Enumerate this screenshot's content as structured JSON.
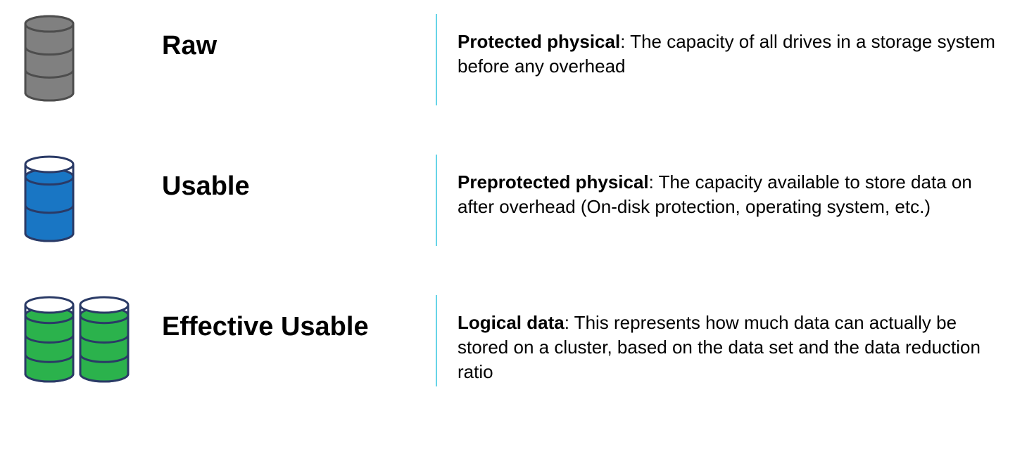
{
  "background_color": "#ffffff",
  "divider_color": "#67d4e8",
  "text_color": "#000000",
  "font_family": "Arial, Helvetica, sans-serif",
  "label_fontsize": 38,
  "label_fontweight": 700,
  "desc_fontsize": 26,
  "rows": [
    {
      "id": "raw",
      "label": "Raw",
      "desc_bold": "Protected physical",
      "desc_rest": ": The capacity of all drives in a storage system before any overhead",
      "icon": {
        "type": "single-cylinder",
        "fill_color": "#808080",
        "stroke_color": "#4d4d4d",
        "fill_level": 1.0,
        "bands": 3,
        "show_empty_top": false
      }
    },
    {
      "id": "usable",
      "label": "Usable",
      "desc_bold": "Preprotected physical",
      "desc_rest": ": The capacity available to store data on after overhead (On-disk protection, operating system, etc.)",
      "icon": {
        "type": "single-cylinder",
        "fill_color": "#1976c4",
        "stroke_color": "#2a3a66",
        "fill_level": 0.82,
        "bands": 2,
        "show_empty_top": true
      }
    },
    {
      "id": "effective",
      "label": "Effective Usable",
      "desc_bold": "Logical data",
      "desc_rest": ": This represents how much data can actually be stored on a cluster, based on the data set and the data reduction ratio",
      "icon": {
        "type": "double-cylinder",
        "fill_color": "#2bb24c",
        "stroke_color": "#2a3a66",
        "fill_level": 0.85,
        "bands": 3,
        "show_empty_top": true
      }
    }
  ]
}
